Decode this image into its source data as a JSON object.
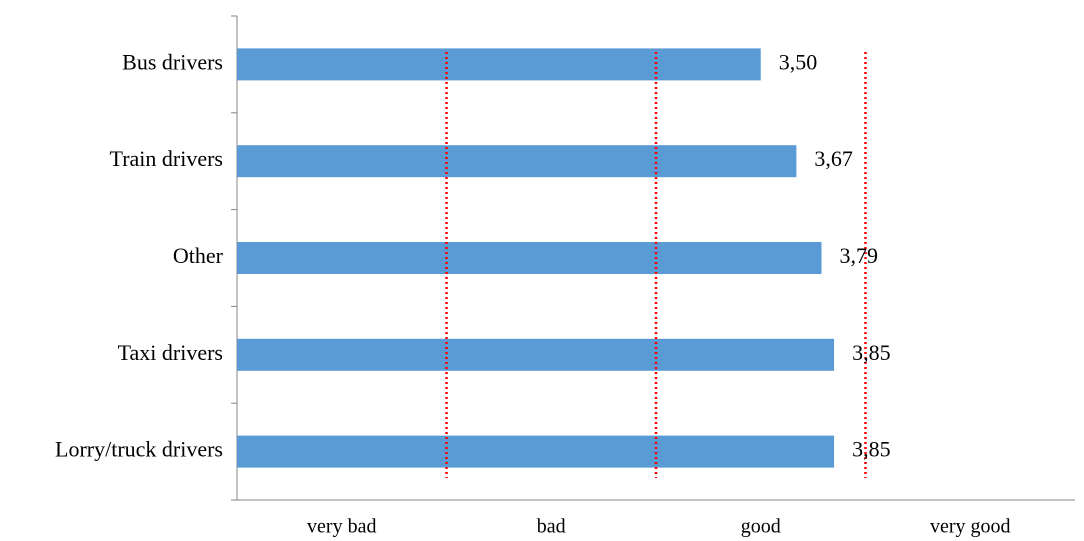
{
  "chart_data": {
    "type": "bar",
    "orientation": "horizontal",
    "categories": [
      "Bus drivers",
      "Train drivers",
      "Other",
      "Taxi drivers",
      "Lorry/truck drivers"
    ],
    "values": [
      3.5,
      3.67,
      3.79,
      3.85,
      3.85
    ],
    "value_labels": [
      "3,50",
      "3,67",
      "3,79",
      "3,85",
      "3,85"
    ],
    "x_scale_labels": [
      "very bad",
      "bad",
      "good",
      "very good"
    ],
    "xlim": [
      1,
      5
    ],
    "reference_lines": [
      2,
      3,
      4
    ],
    "grid": false,
    "legend": "none",
    "colors": {
      "bar": "#5B9BD5",
      "reference_line": "#FF0000",
      "axis": "#868686"
    }
  }
}
